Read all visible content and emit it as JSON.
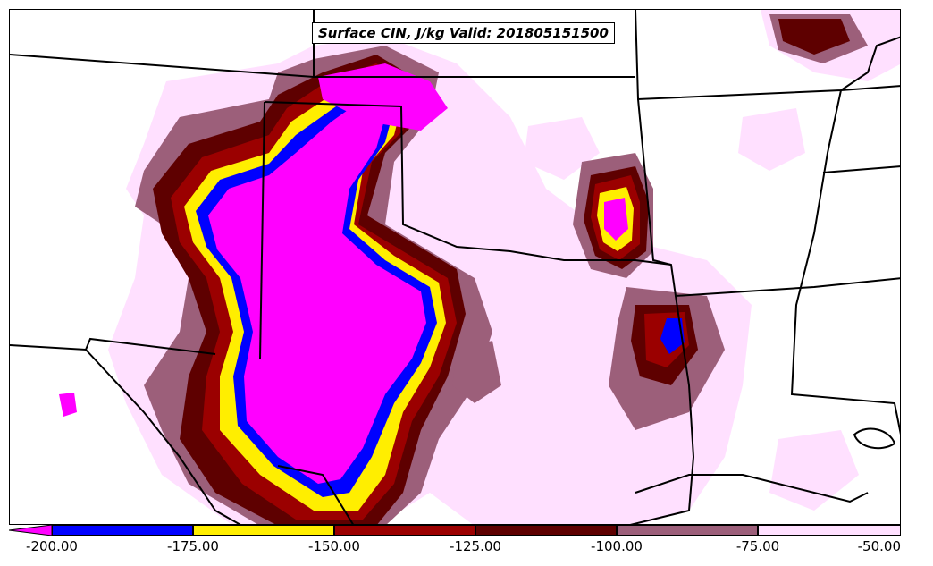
{
  "title": "Surface CIN, J/kg Valid: 201805151500",
  "colorbar": {
    "ticks": [
      "-200.00",
      "-175.00",
      "-150.00",
      "-125.00",
      "-100.00",
      "-75.00",
      "-50.00"
    ],
    "bins": [
      {
        "range": "< -200",
        "color": "#ff00ff"
      },
      {
        "range": "-200 to -175",
        "color": "#0000ff"
      },
      {
        "range": "-175 to -150",
        "color": "#ffee00"
      },
      {
        "range": "-150 to -125",
        "color": "#9b0000"
      },
      {
        "range": "-125 to -100",
        "color": "#5e0000"
      },
      {
        "range": "-100 to -75",
        "color": "#9c5f7a"
      },
      {
        "range": "-75 to -50",
        "color": "#ffe0ff"
      }
    ]
  }
}
